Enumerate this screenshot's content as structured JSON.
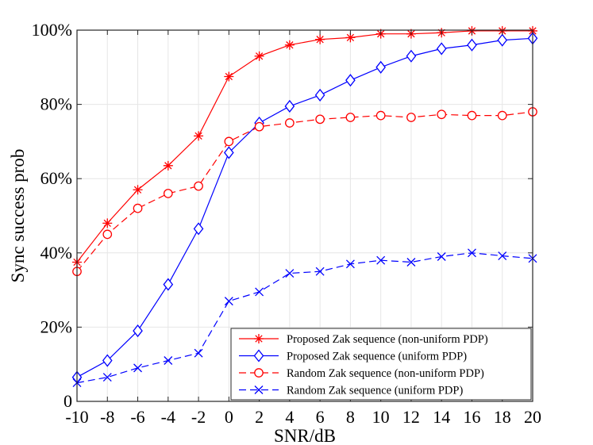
{
  "chart_data": {
    "type": "line",
    "title": "",
    "xlabel": "SNR/dB",
    "ylabel": "Sync success prob",
    "x": [
      -10,
      -8,
      -6,
      -4,
      -2,
      0,
      2,
      4,
      6,
      8,
      10,
      12,
      14,
      16,
      18,
      20
    ],
    "xlim": [
      -10,
      20
    ],
    "ylim": [
      0,
      100
    ],
    "xticks": [
      "-10",
      "-8",
      "-6",
      "-4",
      "-2",
      "0",
      "2",
      "4",
      "6",
      "8",
      "10",
      "12",
      "14",
      "16",
      "18",
      "20"
    ],
    "yticks": [
      {
        "value": 0,
        "label": "0"
      },
      {
        "value": 20,
        "label": "20%"
      },
      {
        "value": 40,
        "label": "40%"
      },
      {
        "value": 60,
        "label": "60%"
      },
      {
        "value": 80,
        "label": "80%"
      },
      {
        "value": 100,
        "label": "100%"
      }
    ],
    "grid": true,
    "legend_position": "bottom-right",
    "series": [
      {
        "name": "Proposed Zak sequence (non-uniform PDP)",
        "color": "#ff0000",
        "dash": "solid",
        "marker": "star",
        "values": [
          37.5,
          48,
          57,
          63.5,
          71.5,
          87.5,
          93,
          96,
          97.5,
          98,
          99,
          99,
          99.3,
          99.8,
          99.8,
          99.8
        ]
      },
      {
        "name": "Proposed Zak sequence (uniform PDP)",
        "color": "#0000ff",
        "dash": "solid",
        "marker": "diamond",
        "values": [
          6.5,
          11,
          19,
          31.5,
          46.5,
          67,
          75,
          79.5,
          82.5,
          86.5,
          90,
          93,
          95,
          96,
          97.3,
          97.8
        ]
      },
      {
        "name": "Random Zak sequence (non-uniform PDP)",
        "color": "#ff0000",
        "dash": "dashed",
        "marker": "circle",
        "values": [
          35,
          45,
          52,
          56,
          58,
          70,
          74,
          75,
          76,
          76.5,
          77,
          76.5,
          77.3,
          77,
          77,
          78
        ]
      },
      {
        "name": "Random Zak sequence (uniform PDP)",
        "color": "#0000ff",
        "dash": "dashed",
        "marker": "x",
        "values": [
          5,
          6.5,
          9,
          11,
          13,
          27,
          29.5,
          34.5,
          35,
          37,
          38,
          37.5,
          39,
          40,
          39.2,
          38.5
        ]
      }
    ]
  }
}
